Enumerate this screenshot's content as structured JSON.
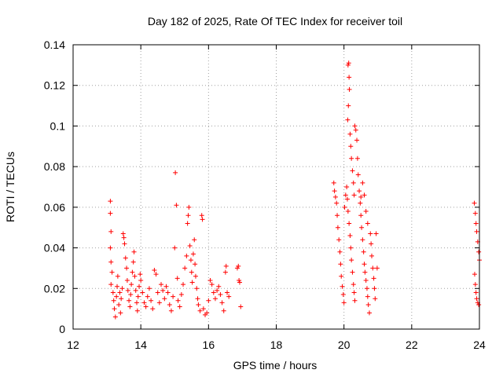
{
  "chart_data": {
    "type": "scatter",
    "title": "Day 182 of 2025, Rate Of TEC Index for receiver toil",
    "xlabel": "GPS time / hours",
    "ylabel": "ROTI / TECUs",
    "xlim": [
      12,
      24
    ],
    "ylim": [
      0,
      0.14
    ],
    "x_ticks": [
      12,
      14,
      16,
      18,
      20,
      22,
      24
    ],
    "x_tick_labels": [
      "12",
      "14",
      "16",
      "18",
      "20",
      "22",
      "24"
    ],
    "y_ticks": [
      0,
      0.02,
      0.04,
      0.06,
      0.08,
      0.1,
      0.12,
      0.14
    ],
    "y_tick_labels": [
      "0",
      "0.02",
      "0.04",
      "0.06",
      "0.08",
      "0.1",
      "0.12",
      "0.14"
    ],
    "grid": true,
    "marker": "+",
    "series": [
      {
        "name": "ROTI",
        "color": "#ff0000",
        "points": [
          [
            13.1,
            0.063
          ],
          [
            13.1,
            0.057
          ],
          [
            13.12,
            0.048
          ],
          [
            13.1,
            0.04
          ],
          [
            13.12,
            0.033
          ],
          [
            13.15,
            0.028
          ],
          [
            13.12,
            0.022
          ],
          [
            13.18,
            0.018
          ],
          [
            13.2,
            0.014
          ],
          [
            13.22,
            0.01
          ],
          [
            13.25,
            0.006
          ],
          [
            13.28,
            0.016
          ],
          [
            13.3,
            0.021
          ],
          [
            13.32,
            0.026
          ],
          [
            13.35,
            0.012
          ],
          [
            13.38,
            0.018
          ],
          [
            13.4,
            0.008
          ],
          [
            13.42,
            0.015
          ],
          [
            13.45,
            0.02
          ],
          [
            13.48,
            0.047
          ],
          [
            13.5,
            0.045
          ],
          [
            13.52,
            0.042
          ],
          [
            13.55,
            0.035
          ],
          [
            13.58,
            0.03
          ],
          [
            13.6,
            0.024
          ],
          [
            13.62,
            0.019
          ],
          [
            13.65,
            0.014
          ],
          [
            13.68,
            0.011
          ],
          [
            13.7,
            0.017
          ],
          [
            13.72,
            0.022
          ],
          [
            13.75,
            0.028
          ],
          [
            13.78,
            0.033
          ],
          [
            13.8,
            0.038
          ],
          [
            13.82,
            0.026
          ],
          [
            13.85,
            0.019
          ],
          [
            13.88,
            0.013
          ],
          [
            13.9,
            0.009
          ],
          [
            13.92,
            0.016
          ],
          [
            13.95,
            0.021
          ],
          [
            13.98,
            0.027
          ],
          [
            14.0,
            0.024
          ],
          [
            14.05,
            0.018
          ],
          [
            14.1,
            0.013
          ],
          [
            14.15,
            0.011
          ],
          [
            14.2,
            0.016
          ],
          [
            14.25,
            0.02
          ],
          [
            14.3,
            0.014
          ],
          [
            14.35,
            0.01
          ],
          [
            14.4,
            0.029
          ],
          [
            14.45,
            0.027
          ],
          [
            14.5,
            0.018
          ],
          [
            14.55,
            0.013
          ],
          [
            14.6,
            0.022
          ],
          [
            14.65,
            0.019
          ],
          [
            14.7,
            0.015
          ],
          [
            14.75,
            0.021
          ],
          [
            14.8,
            0.018
          ],
          [
            14.85,
            0.012
          ],
          [
            14.9,
            0.009
          ],
          [
            14.95,
            0.016
          ],
          [
            15.0,
            0.04
          ],
          [
            15.02,
            0.077
          ],
          [
            15.05,
            0.061
          ],
          [
            15.08,
            0.025
          ],
          [
            15.1,
            0.014
          ],
          [
            15.15,
            0.011
          ],
          [
            15.2,
            0.017
          ],
          [
            15.25,
            0.022
          ],
          [
            15.3,
            0.03
          ],
          [
            15.35,
            0.036
          ],
          [
            15.38,
            0.052
          ],
          [
            15.4,
            0.056
          ],
          [
            15.42,
            0.06
          ],
          [
            15.45,
            0.041
          ],
          [
            15.48,
            0.034
          ],
          [
            15.5,
            0.028
          ],
          [
            15.52,
            0.023
          ],
          [
            15.55,
            0.037
          ],
          [
            15.58,
            0.044
          ],
          [
            15.6,
            0.032
          ],
          [
            15.62,
            0.026
          ],
          [
            15.65,
            0.02
          ],
          [
            15.68,
            0.015
          ],
          [
            15.7,
            0.012
          ],
          [
            15.75,
            0.009
          ],
          [
            15.8,
            0.056
          ],
          [
            15.82,
            0.054
          ],
          [
            15.85,
            0.01
          ],
          [
            15.9,
            0.007
          ],
          [
            15.95,
            0.008
          ],
          [
            16.0,
            0.014
          ],
          [
            16.05,
            0.024
          ],
          [
            16.1,
            0.022
          ],
          [
            16.15,
            0.018
          ],
          [
            16.2,
            0.015
          ],
          [
            16.25,
            0.019
          ],
          [
            16.3,
            0.021
          ],
          [
            16.35,
            0.017
          ],
          [
            16.4,
            0.013
          ],
          [
            16.45,
            0.009
          ],
          [
            16.5,
            0.028
          ],
          [
            16.52,
            0.031
          ],
          [
            16.55,
            0.018
          ],
          [
            16.6,
            0.016
          ],
          [
            16.85,
            0.03
          ],
          [
            16.88,
            0.031
          ],
          [
            16.9,
            0.024
          ],
          [
            16.92,
            0.023
          ],
          [
            16.95,
            0.011
          ],
          [
            19.7,
            0.072
          ],
          [
            19.72,
            0.068
          ],
          [
            19.75,
            0.065
          ],
          [
            19.78,
            0.062
          ],
          [
            19.8,
            0.056
          ],
          [
            19.82,
            0.05
          ],
          [
            19.85,
            0.044
          ],
          [
            19.88,
            0.038
          ],
          [
            19.9,
            0.032
          ],
          [
            19.92,
            0.026
          ],
          [
            19.95,
            0.021
          ],
          [
            19.98,
            0.017
          ],
          [
            20.0,
            0.013
          ],
          [
            20.02,
            0.06
          ],
          [
            20.05,
            0.066
          ],
          [
            20.08,
            0.07
          ],
          [
            20.1,
            0.064
          ],
          [
            20.12,
            0.058
          ],
          [
            20.15,
            0.052
          ],
          [
            20.18,
            0.046
          ],
          [
            20.2,
            0.04
          ],
          [
            20.22,
            0.034
          ],
          [
            20.25,
            0.028
          ],
          [
            20.28,
            0.022
          ],
          [
            20.3,
            0.018
          ],
          [
            20.32,
            0.014
          ],
          [
            20.12,
            0.13
          ],
          [
            20.14,
            0.131
          ],
          [
            20.15,
            0.124
          ],
          [
            20.16,
            0.118
          ],
          [
            20.13,
            0.11
          ],
          [
            20.11,
            0.103
          ],
          [
            20.18,
            0.096
          ],
          [
            20.2,
            0.09
          ],
          [
            20.22,
            0.084
          ],
          [
            20.25,
            0.078
          ],
          [
            20.28,
            0.072
          ],
          [
            20.3,
            0.066
          ],
          [
            20.32,
            0.1
          ],
          [
            20.35,
            0.098
          ],
          [
            20.38,
            0.093
          ],
          [
            20.4,
            0.084
          ],
          [
            20.42,
            0.076
          ],
          [
            20.45,
            0.068
          ],
          [
            20.48,
            0.062
          ],
          [
            20.5,
            0.056
          ],
          [
            20.52,
            0.05
          ],
          [
            20.55,
            0.044
          ],
          [
            20.58,
            0.038
          ],
          [
            20.6,
            0.032
          ],
          [
            20.62,
            0.028
          ],
          [
            20.65,
            0.024
          ],
          [
            20.68,
            0.02
          ],
          [
            20.7,
            0.016
          ],
          [
            20.72,
            0.012
          ],
          [
            20.75,
            0.008
          ],
          [
            20.78,
            0.047
          ],
          [
            20.8,
            0.042
          ],
          [
            20.82,
            0.036
          ],
          [
            20.85,
            0.03
          ],
          [
            20.88,
            0.025
          ],
          [
            20.9,
            0.02
          ],
          [
            20.92,
            0.015
          ],
          [
            20.95,
            0.047
          ],
          [
            20.98,
            0.03
          ],
          [
            20.5,
            0.065
          ],
          [
            20.55,
            0.072
          ],
          [
            20.6,
            0.066
          ],
          [
            20.65,
            0.058
          ],
          [
            20.7,
            0.052
          ],
          [
            23.85,
            0.062
          ],
          [
            23.88,
            0.057
          ],
          [
            23.9,
            0.052
          ],
          [
            23.92,
            0.048
          ],
          [
            23.95,
            0.043
          ],
          [
            23.98,
            0.038
          ],
          [
            24.0,
            0.034
          ],
          [
            23.86,
            0.027
          ],
          [
            23.88,
            0.022
          ],
          [
            23.9,
            0.018
          ],
          [
            23.92,
            0.015
          ],
          [
            23.95,
            0.013
          ],
          [
            23.98,
            0.012
          ]
        ]
      }
    ]
  }
}
